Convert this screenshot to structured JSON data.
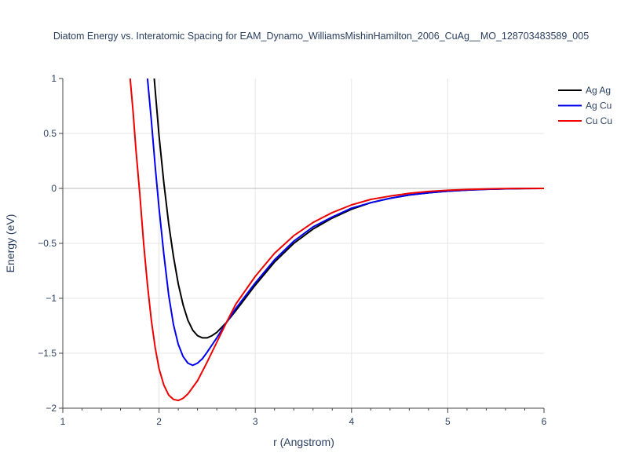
{
  "chart_data": {
    "type": "line",
    "title": "Diatom Energy vs. Interatomic Spacing for EAM_Dynamo_WilliamsMishinHamilton_2006_CuAg__MO_128703483589_005",
    "xlabel": "r (Angstrom)",
    "ylabel": "Energy (eV)",
    "xlim": [
      1,
      6
    ],
    "ylim": [
      -2,
      1
    ],
    "xticks": [
      "1",
      "2",
      "3",
      "4",
      "5",
      "6"
    ],
    "yticks": [
      "1",
      "0.5",
      "0",
      "−0.5",
      "−1",
      "−1.5",
      "−2"
    ],
    "grid": true,
    "legend_position": "top-right",
    "series": [
      {
        "name": "Ag Ag",
        "color": "#000000",
        "x": [
          1.95,
          2.0,
          2.05,
          2.1,
          2.15,
          2.2,
          2.25,
          2.3,
          2.35,
          2.4,
          2.45,
          2.5,
          2.55,
          2.6,
          2.7,
          2.8,
          3.0,
          3.2,
          3.4,
          3.6,
          3.8,
          4.0,
          4.2,
          4.4,
          4.6,
          4.8,
          5.0,
          5.2,
          5.4,
          5.6,
          5.8,
          6.0
        ],
        "y": [
          1.0,
          0.48,
          0.05,
          -0.32,
          -0.62,
          -0.87,
          -1.06,
          -1.2,
          -1.29,
          -1.34,
          -1.36,
          -1.36,
          -1.34,
          -1.31,
          -1.22,
          -1.11,
          -0.88,
          -0.67,
          -0.5,
          -0.37,
          -0.27,
          -0.19,
          -0.13,
          -0.09,
          -0.06,
          -0.04,
          -0.025,
          -0.015,
          -0.008,
          -0.004,
          -0.001,
          0.0
        ]
      },
      {
        "name": "Ag Cu",
        "color": "#0000ee",
        "x": [
          1.88,
          1.92,
          1.96,
          2.0,
          2.05,
          2.1,
          2.15,
          2.2,
          2.25,
          2.3,
          2.35,
          2.4,
          2.45,
          2.5,
          2.6,
          2.7,
          2.8,
          3.0,
          3.2,
          3.4,
          3.6,
          3.8,
          4.0,
          4.2,
          4.4,
          4.6,
          4.8,
          5.0,
          5.2,
          5.4,
          5.6,
          5.8,
          6.0
        ],
        "y": [
          1.0,
          0.62,
          0.2,
          -0.18,
          -0.6,
          -0.97,
          -1.24,
          -1.42,
          -1.53,
          -1.59,
          -1.61,
          -1.59,
          -1.55,
          -1.49,
          -1.36,
          -1.22,
          -1.09,
          -0.86,
          -0.65,
          -0.48,
          -0.35,
          -0.26,
          -0.18,
          -0.13,
          -0.09,
          -0.06,
          -0.04,
          -0.025,
          -0.015,
          -0.008,
          -0.004,
          -0.001,
          0.0
        ]
      },
      {
        "name": "Cu Cu",
        "color": "#ee0000",
        "x": [
          1.7,
          1.73,
          1.76,
          1.8,
          1.84,
          1.88,
          1.92,
          1.96,
          2.0,
          2.05,
          2.1,
          2.15,
          2.2,
          2.25,
          2.3,
          2.4,
          2.5,
          2.6,
          2.7,
          2.8,
          3.0,
          3.2,
          3.4,
          3.6,
          3.8,
          4.0,
          4.2,
          4.4,
          4.6,
          4.8,
          5.0,
          5.2,
          5.4,
          5.6,
          5.8,
          6.0
        ],
        "y": [
          1.0,
          0.7,
          0.35,
          -0.05,
          -0.5,
          -0.88,
          -1.2,
          -1.45,
          -1.64,
          -1.79,
          -1.88,
          -1.92,
          -1.93,
          -1.91,
          -1.87,
          -1.75,
          -1.58,
          -1.4,
          -1.22,
          -1.05,
          -0.8,
          -0.59,
          -0.43,
          -0.31,
          -0.22,
          -0.15,
          -0.1,
          -0.07,
          -0.045,
          -0.028,
          -0.017,
          -0.01,
          -0.005,
          -0.002,
          -0.001,
          0.0
        ]
      }
    ]
  }
}
